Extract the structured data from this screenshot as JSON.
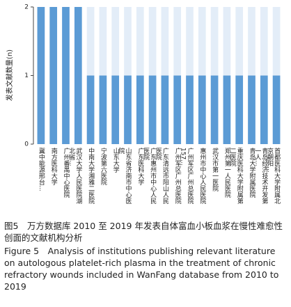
{
  "chart_data": {
    "type": "bar",
    "y_label": "发表文献数量(n)",
    "categories": [
      "冀中能源邢台...",
      "南方医科大学",
      "广州番禺中心医院",
      "武汉大学人民医院湖北省...",
      "中南大学湘雅二医院",
      "宁波第六医院",
      "山东大学",
      "山东省济南市中心医院",
      "广东医科大学",
      "广东惠州市中心人民医院",
      "广东清远市阳山人民医院",
      "广州军区广州总医院",
      "广州军区广州总医院157...",
      "惠州市中心人民医院",
      "武汉市第一医院",
      "郑州第一人民医院",
      "重庆医科大学附属第二医院",
      "青岛大学附属医院",
      "青岛经济技术开发第一人...",
      "首都医科大学附属北京朝阳..."
    ],
    "values": [
      2,
      2,
      2,
      2,
      1,
      1,
      1,
      1,
      1,
      1,
      1,
      1,
      1,
      1,
      1,
      1,
      1,
      1,
      1,
      1
    ],
    "color": "#5b9bd5",
    "ylim": [
      0,
      2
    ],
    "yticks": [
      0,
      1,
      2
    ]
  },
  "caption": {
    "zh": "图5　万方数据库 2010 至 2019 年发表自体富血小板血浆在慢性难愈性创面的文献机构分析",
    "en": "Figure 5　Analysis of institutions publishing relevant literature on autologous platelet-rich plasma in the treatment of chronic refractory wounds included in WanFang database from 2010 to 2019"
  }
}
